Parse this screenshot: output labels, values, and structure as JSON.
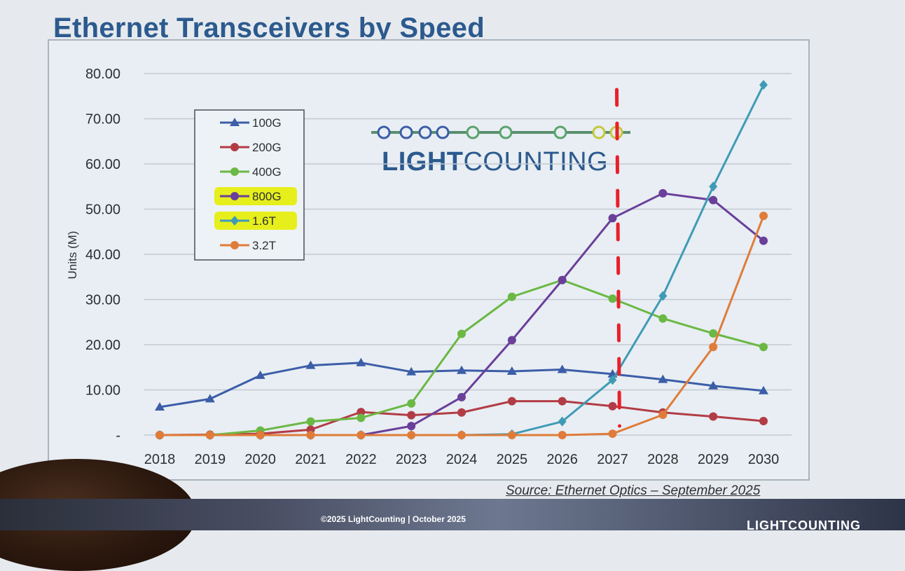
{
  "slide": {
    "title": "Ethernet Transceivers by Speed",
    "source": "Source: Ethernet Optics – September 2025",
    "footer": "©2025 LightCounting | October 2025",
    "footer_logo": "LIGHTCOUNTING"
  },
  "logo": {
    "bold_part": "LIGHT",
    "regular_part": "COUNTING"
  },
  "chart_data": {
    "type": "line",
    "title": "Ethernet Transceivers by Speed",
    "xlabel": "",
    "ylabel": "Units (M)",
    "ylim": [
      0,
      80
    ],
    "yticks": [
      0,
      10,
      20,
      30,
      40,
      50,
      60,
      70,
      80
    ],
    "ytick_labels": [
      "-",
      "10.00",
      "20.00",
      "30.00",
      "40.00",
      "50.00",
      "60.00",
      "70.00",
      "80.00"
    ],
    "categories": [
      "2018",
      "2019",
      "2020",
      "2021",
      "2022",
      "2023",
      "2024",
      "2025",
      "2026",
      "2027",
      "2028",
      "2029",
      "2030"
    ],
    "grid": true,
    "legend_position": "top-left",
    "series": [
      {
        "name": "100G",
        "color": "#3c5da8",
        "marker": "triangle",
        "values": [
          6.2,
          8.0,
          13.2,
          15.4,
          16.0,
          14.0,
          14.3,
          14.1,
          14.5,
          13.5,
          12.3,
          10.9,
          9.8
        ]
      },
      {
        "name": "200G",
        "color": "#b23c45",
        "marker": "circle",
        "values": [
          0,
          0.1,
          0.3,
          1.2,
          5.1,
          4.4,
          5.0,
          7.5,
          7.5,
          6.4,
          5.0,
          4.1,
          3.1
        ]
      },
      {
        "name": "400G",
        "color": "#6bb844",
        "marker": "circle",
        "values": [
          0,
          0,
          1.0,
          3.0,
          3.8,
          7.0,
          22.4,
          30.6,
          34.3,
          30.2,
          25.8,
          22.5,
          19.5
        ]
      },
      {
        "name": "800G",
        "color": "#6a3f9a",
        "marker": "circle",
        "values": [
          0,
          0,
          0,
          0,
          0,
          2.0,
          8.4,
          21.0,
          34.3,
          48.0,
          53.5,
          52.0,
          43.0
        ]
      },
      {
        "name": "1.6T",
        "color": "#3f9bb5",
        "marker": "diamond",
        "values": [
          0,
          0,
          0,
          0,
          0,
          0,
          0,
          0.2,
          3.0,
          12.2,
          30.8,
          55.0,
          77.5
        ]
      },
      {
        "name": "3.2T",
        "color": "#e07c3a",
        "marker": "circle",
        "values": [
          0,
          0,
          0,
          0,
          0,
          0,
          0,
          0,
          0,
          0.3,
          4.5,
          19.5,
          48.5
        ]
      }
    ],
    "highlighted_legend_entries": [
      "800G",
      "1.6T"
    ],
    "annotation": {
      "type": "vertical-dashed-line",
      "at": "2027",
      "color": "#e8202a"
    }
  },
  "colors": {
    "title": "#2c5a8e",
    "highlight": "#e6ef1c",
    "annotation": "#e8202a"
  }
}
